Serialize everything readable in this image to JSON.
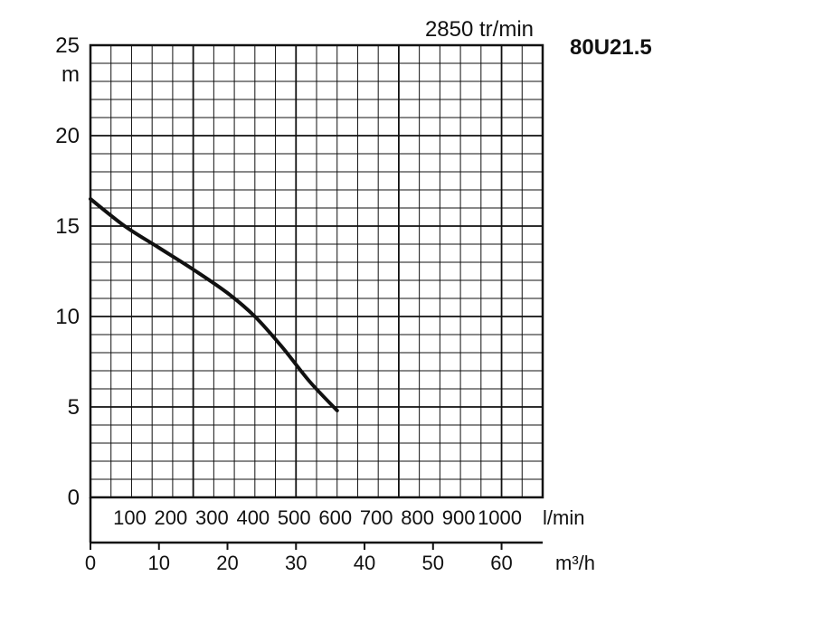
{
  "header": {
    "speed": "2850 tr/min",
    "model": "80U21.5"
  },
  "chart_data": {
    "type": "line",
    "title": "80U21.5",
    "subtitle": "2850 tr/min",
    "ylabel": "m",
    "ylim": [
      0,
      25
    ],
    "yticks": [
      "0",
      "5",
      "10",
      "15",
      "20",
      "25"
    ],
    "xlabel": "m³/h",
    "xlim": [
      0,
      66
    ],
    "xticks": [
      "0",
      "10",
      "20",
      "30",
      "40",
      "50",
      "60"
    ],
    "x2label": "l/min",
    "x2ticks": [
      "100",
      "200",
      "300",
      "400",
      "500",
      "600",
      "700",
      "800",
      "900",
      "1000"
    ],
    "grid": true,
    "series": [
      {
        "x": [
          0,
          5,
          10,
          15,
          20,
          24,
          28,
          32,
          36
        ],
        "y": [
          16.5,
          15.0,
          13.8,
          12.6,
          11.3,
          10.0,
          8.3,
          6.4,
          4.8
        ]
      }
    ]
  }
}
